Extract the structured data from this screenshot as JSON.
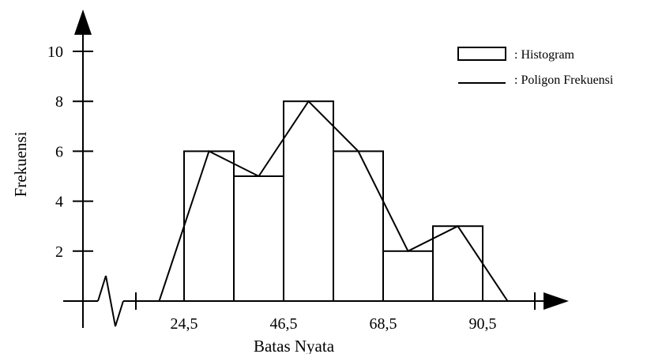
{
  "chart_data": {
    "type": "bar",
    "ylabel": "Frekuensi",
    "xlabel": "Batas Nyata",
    "y_ticks": [
      "2",
      "4",
      "6",
      "8",
      "10"
    ],
    "x_tick_labels": [
      "24,5",
      "46,5",
      "68,5",
      "90,5"
    ],
    "ylim": [
      0,
      10
    ],
    "bins": [
      {
        "lower": 24.5,
        "upper": 35.5,
        "frequency": 6
      },
      {
        "lower": 35.5,
        "upper": 46.5,
        "frequency": 5
      },
      {
        "lower": 46.5,
        "upper": 57.5,
        "frequency": 8
      },
      {
        "lower": 57.5,
        "upper": 68.5,
        "frequency": 6
      },
      {
        "lower": 68.5,
        "upper": 79.5,
        "frequency": 2
      },
      {
        "lower": 79.5,
        "upper": 90.5,
        "frequency": 3
      }
    ],
    "series": [
      {
        "name": "Histogram",
        "type": "bar",
        "values": [
          6,
          5,
          8,
          6,
          2,
          3
        ]
      },
      {
        "name": "Poligon Frekuensi",
        "type": "line",
        "x": [
          19,
          30,
          41,
          52,
          63,
          74,
          85,
          96
        ],
        "values": [
          0,
          6,
          5,
          8,
          6,
          2,
          3,
          0
        ]
      }
    ],
    "legend": {
      "position": "top-right",
      "items": [
        {
          "symbol": "box",
          "label": ": Histogram"
        },
        {
          "symbol": "line",
          "label": ": Poligon Frekuensi"
        }
      ]
    }
  }
}
